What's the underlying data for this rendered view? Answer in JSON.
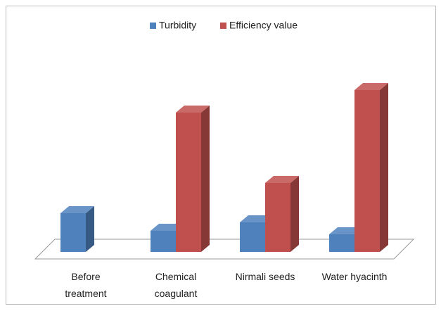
{
  "chart_data": {
    "type": "bar3d",
    "categories": [
      "Before\ntreatment",
      "Chemical\ncoagulant",
      "Nirmali seeds",
      "Water hyacinth"
    ],
    "series": [
      {
        "name": "Turbidity",
        "color": "#4f81bd",
        "values": [
          55,
          30,
          42,
          25
        ]
      },
      {
        "name": "Efficiency value",
        "color": "#c0504d",
        "values": [
          null,
          198,
          98,
          230
        ]
      }
    ],
    "ylim": [
      0,
      250
    ]
  }
}
